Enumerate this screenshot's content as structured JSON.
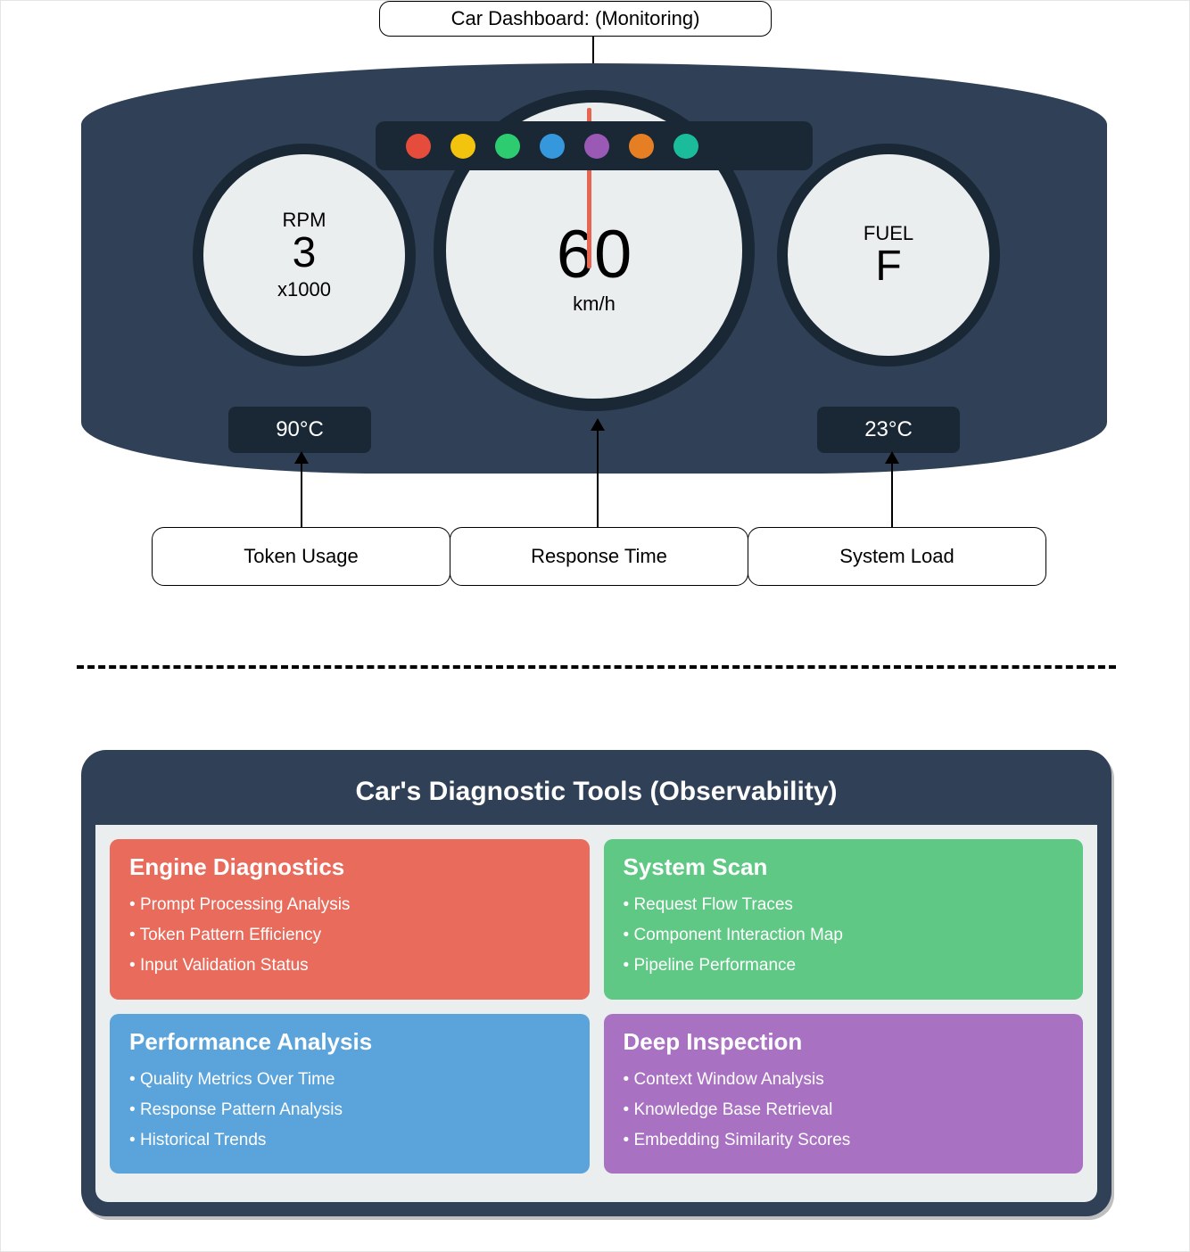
{
  "colors": {
    "panel_bg": "#304157",
    "panel_dark": "#1a2836",
    "gauge_face": "#ebeeef",
    "needle": "#e86552",
    "white": "#ffffff",
    "black": "#000000"
  },
  "top_label": "Car Dashboard: (Monitoring)",
  "indicator_lights": [
    "#e64c3c",
    "#f2c40e",
    "#2ecc71",
    "#3598dc",
    "#9b59b6",
    "#e67e23",
    "#1abc9c"
  ],
  "gauges": {
    "left": {
      "title": "RPM",
      "value": "3",
      "sub": "x1000"
    },
    "center": {
      "title": "",
      "value": "60",
      "sub": "km/h"
    },
    "right": {
      "title": "FUEL",
      "value": "F",
      "sub": ""
    }
  },
  "temps": {
    "left": "90°C",
    "right": "23°C"
  },
  "bottom_labels": [
    "Token Usage",
    "Response Time",
    "System Load"
  ],
  "diag_title": "Car's Diagnostic Tools (Observability)",
  "diag_cards": [
    {
      "title": "Engine Diagnostics",
      "color": "#e86b5c",
      "items": [
        "Prompt Processing Analysis",
        "Token Pattern Efficiency",
        "Input Validation Status"
      ]
    },
    {
      "title": "System Scan",
      "color": "#5fc884",
      "items": [
        "Request Flow Traces",
        "Component Interaction Map",
        "Pipeline Performance"
      ]
    },
    {
      "title": "Performance Analysis",
      "color": "#5aa4db",
      "items": [
        "Quality Metrics Over Time",
        "Response Pattern Analysis",
        "Historical Trends"
      ]
    },
    {
      "title": "Deep Inspection",
      "color": "#a871c2",
      "items": [
        "Context Window Analysis",
        "Knowledge Base Retrieval",
        "Embedding Similarity Scores"
      ]
    }
  ]
}
